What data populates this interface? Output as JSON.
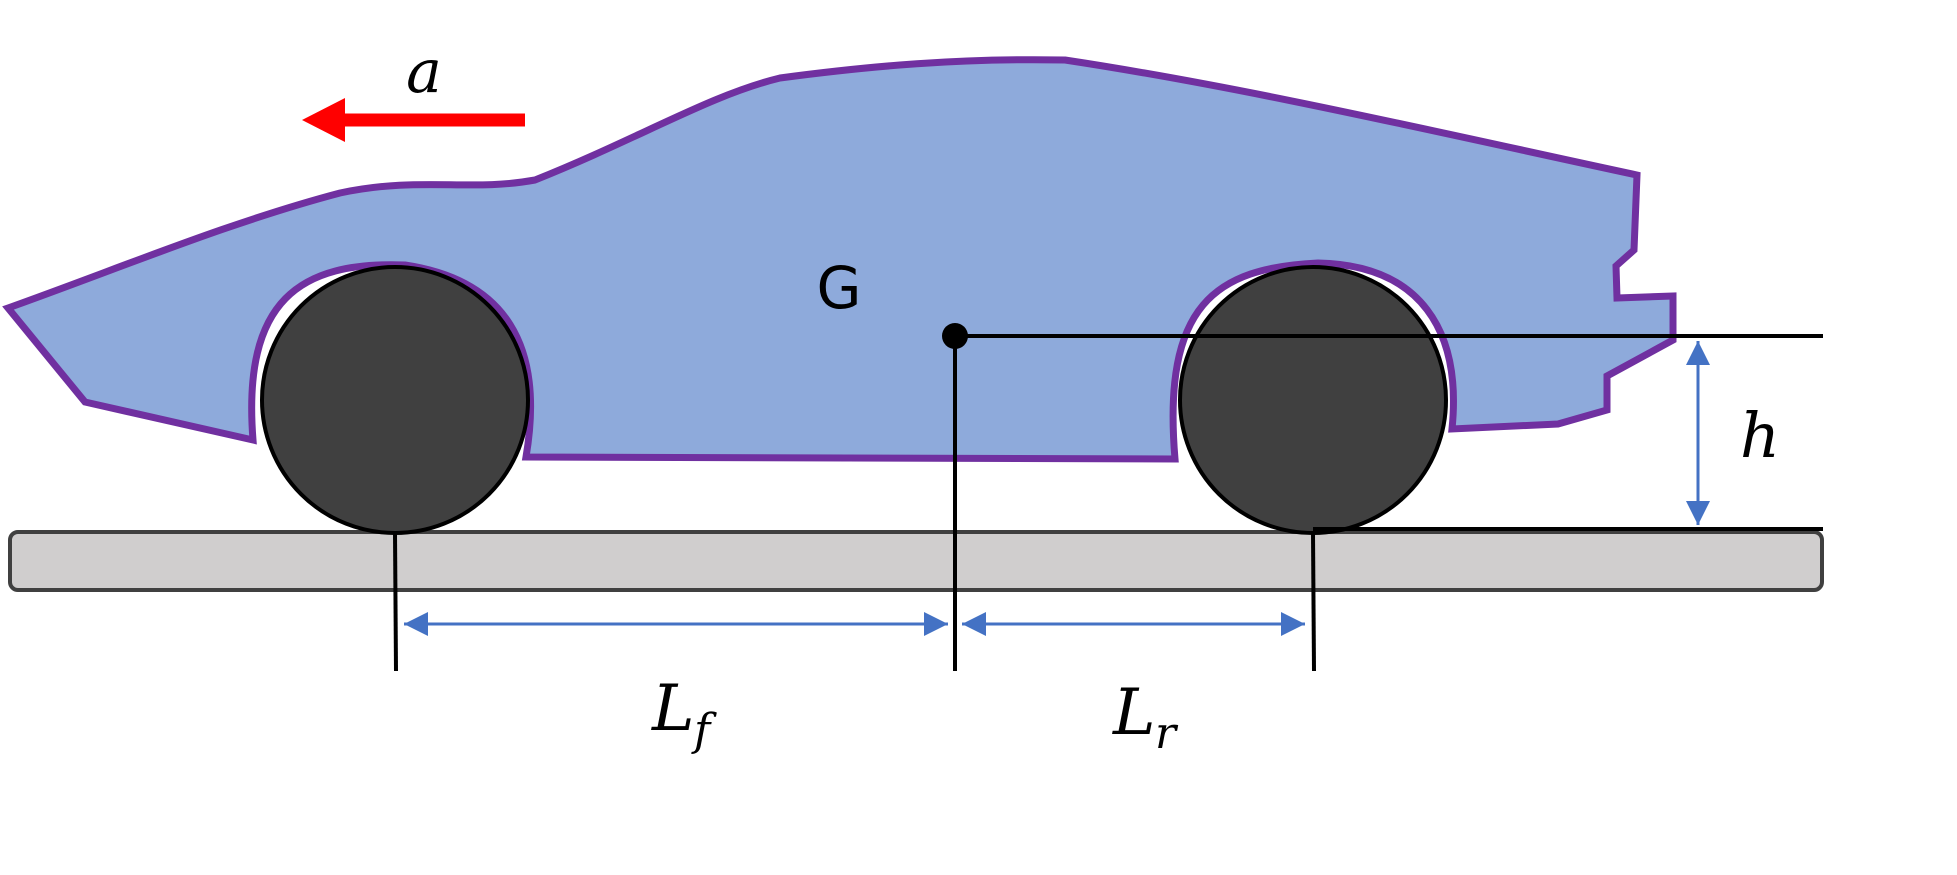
{
  "labels": {
    "acceleration": "a",
    "center_of_gravity": "G",
    "height": "h",
    "front_length_main": "L",
    "front_length_sub": "f",
    "rear_length_main": "L",
    "rear_length_sub": "r"
  },
  "colors": {
    "car_body_fill": "#8eaadb",
    "car_body_stroke": "#7030a0",
    "wheel_fill": "#404040",
    "ground_fill": "#d0cece",
    "ground_stroke": "#404040",
    "dimension_arrow": "#4472c4",
    "acceleration_arrow": "#ff0000",
    "line": "#000000"
  }
}
